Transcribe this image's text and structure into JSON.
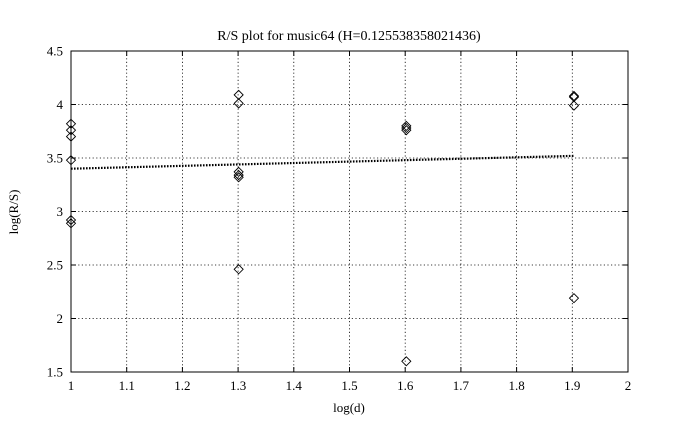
{
  "chart_data": {
    "type": "scatter",
    "title": "R/S plot for music64 (H=0.125538358021436)",
    "xlabel": "log(d)",
    "ylabel": "log(R/S)",
    "xlim": [
      1,
      2
    ],
    "ylim": [
      1.5,
      4.5
    ],
    "xticks": [
      1,
      1.1,
      1.2,
      1.3,
      1.4,
      1.5,
      1.6,
      1.7,
      1.8,
      1.9,
      2
    ],
    "yticks": [
      1.5,
      2,
      2.5,
      3,
      3.5,
      4,
      4.5
    ],
    "xtick_labels": [
      "1",
      "1.1",
      "1.2",
      "1.3",
      "1.4",
      "1.5",
      "1.6",
      "1.7",
      "1.8",
      "1.9",
      "2"
    ],
    "ytick_labels": [
      "1.5",
      "2",
      "2.5",
      "3",
      "3.5",
      "4",
      "4.5"
    ],
    "grid": true,
    "points": [
      {
        "x": 1.0,
        "y": 3.82
      },
      {
        "x": 1.0,
        "y": 3.76
      },
      {
        "x": 1.0,
        "y": 3.7
      },
      {
        "x": 1.0,
        "y": 3.48
      },
      {
        "x": 1.0,
        "y": 2.92
      },
      {
        "x": 1.0,
        "y": 2.89
      },
      {
        "x": 1.301,
        "y": 4.09
      },
      {
        "x": 1.301,
        "y": 4.01
      },
      {
        "x": 1.301,
        "y": 3.37
      },
      {
        "x": 1.301,
        "y": 3.34
      },
      {
        "x": 1.301,
        "y": 3.32
      },
      {
        "x": 1.301,
        "y": 2.46
      },
      {
        "x": 1.602,
        "y": 3.8
      },
      {
        "x": 1.602,
        "y": 3.78
      },
      {
        "x": 1.602,
        "y": 3.76
      },
      {
        "x": 1.602,
        "y": 1.6
      },
      {
        "x": 1.903,
        "y": 4.08
      },
      {
        "x": 1.903,
        "y": 4.07
      },
      {
        "x": 1.903,
        "y": 3.99
      },
      {
        "x": 1.903,
        "y": 2.19
      }
    ],
    "fit_line": {
      "x": [
        1.0,
        1.903
      ],
      "y": [
        3.4,
        3.52
      ],
      "style": "dotted"
    }
  }
}
